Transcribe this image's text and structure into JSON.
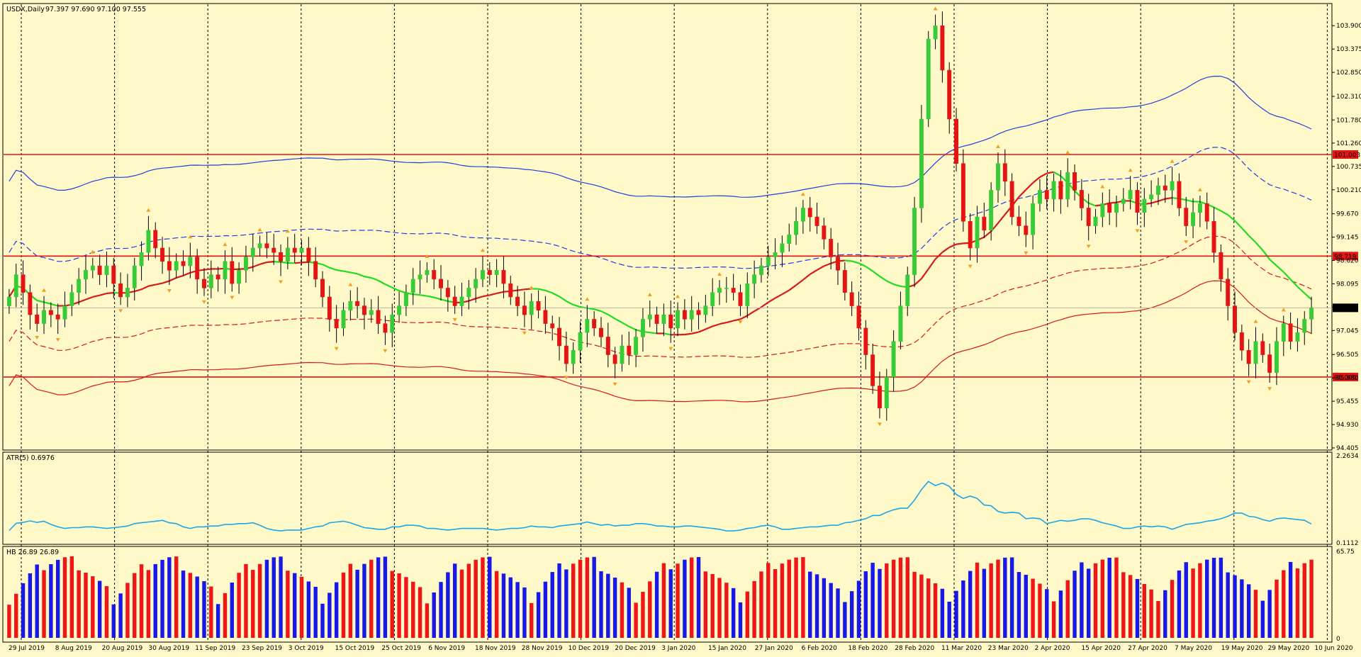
{
  "chart_data": {
    "type": "candlestick",
    "symbol_label": "USDX,Daily",
    "ohlc_header": "97.397 97.690 97.100 97.555",
    "price_ticks": [
      "103.900",
      "103.375",
      "102.850",
      "102.310",
      "101.780",
      "101.260",
      "100.735",
      "100.210",
      "99.670",
      "99.145",
      "98.620",
      "98.095",
      "97.570",
      "97.045",
      "96.505",
      "95.980",
      "95.455",
      "94.930",
      "94.405"
    ],
    "ylim": [
      94.405,
      104.35
    ],
    "horizontal_levels": [
      {
        "value": 101.003,
        "label": "101.003"
      },
      {
        "value": 98.719,
        "label": "98.719"
      },
      {
        "value": 96.0,
        "label": "96.000"
      }
    ],
    "last_price": {
      "value": 97.555,
      "label": "97.555"
    },
    "date_labels": [
      "29 Jul 2019",
      "8 Aug 2019",
      "20 Aug 2019",
      "30 Aug 2019",
      "11 Sep 2019",
      "23 Sep 2019",
      "3 Oct 2019",
      "15 Oct 2019",
      "25 Oct 2019",
      "6 Nov 2019",
      "18 Nov 2019",
      "28 Nov 2019",
      "10 Dec 2019",
      "20 Dec 2019",
      "3 Jan 2020",
      "15 Jan 2020",
      "27 Jan 2020",
      "6 Feb 2020",
      "18 Feb 2020",
      "28 Feb 2020",
      "11 Mar 2020",
      "23 Mar 2020",
      "2 Apr 2020",
      "15 Apr 2020",
      "27 Apr 2020",
      "7 May 2020",
      "19 May 2020",
      "29 May 2020",
      "10 Jun 2020"
    ],
    "closes": [
      97.8,
      98.3,
      97.9,
      97.4,
      97.2,
      97.5,
      97.4,
      97.3,
      97.6,
      97.9,
      98.2,
      98.4,
      98.5,
      98.3,
      98.5,
      98.1,
      97.8,
      98.0,
      98.5,
      98.8,
      99.3,
      98.9,
      98.6,
      98.4,
      98.6,
      98.5,
      98.7,
      98.2,
      98.0,
      98.3,
      98.2,
      98.6,
      98.1,
      98.4,
      98.7,
      98.9,
      99.0,
      98.9,
      98.8,
      98.6,
      98.9,
      98.8,
      98.9,
      98.6,
      98.2,
      97.8,
      97.3,
      97.1,
      97.5,
      97.7,
      97.6,
      97.4,
      97.5,
      97.2,
      97.0,
      97.4,
      97.6,
      97.9,
      98.2,
      98.3,
      98.4,
      98.2,
      98.0,
      97.8,
      97.6,
      97.8,
      98.0,
      98.2,
      98.4,
      98.3,
      98.4,
      98.1,
      97.8,
      97.6,
      97.4,
      97.7,
      97.5,
      97.2,
      97.1,
      96.7,
      96.3,
      96.6,
      97.0,
      97.3,
      97.1,
      96.9,
      96.5,
      96.3,
      96.7,
      96.5,
      96.9,
      97.3,
      97.4,
      97.2,
      97.4,
      97.1,
      97.5,
      97.3,
      97.5,
      97.4,
      97.6,
      97.9,
      98.0,
      98.0,
      97.9,
      97.6,
      98.1,
      98.3,
      98.5,
      98.7,
      98.8,
      99.0,
      99.2,
      99.5,
      99.8,
      99.6,
      99.4,
      99.1,
      98.7,
      98.4,
      97.9,
      97.6,
      97.1,
      96.5,
      95.8,
      95.3,
      96.0,
      96.8,
      97.6,
      98.3,
      99.8,
      101.8,
      103.6,
      103.9,
      102.9,
      101.8,
      100.8,
      99.5,
      98.9,
      99.6,
      99.3,
      100.2,
      100.8,
      100.4,
      99.6,
      99.4,
      99.2,
      99.9,
      100.2,
      100.0,
      100.4,
      100.0,
      100.6,
      100.2,
      99.8,
      99.4,
      99.6,
      99.9,
      99.7,
      99.9,
      100.0,
      100.2,
      99.7,
      100.0,
      100.1,
      100.3,
      100.2,
      100.4,
      99.8,
      99.4,
      99.7,
      99.9,
      99.5,
      98.8,
      98.2,
      97.6,
      97.0,
      96.6,
      96.3,
      96.8,
      96.5,
      96.1,
      96.8,
      97.2,
      96.8,
      97.0,
      97.3,
      97.555
    ]
  },
  "atr": {
    "label": "ATR(5) 0.6976",
    "ticks": [
      "2.2634",
      "0.1112"
    ],
    "ylim": [
      0.1112,
      2.2634
    ]
  },
  "hb": {
    "label": "HB 26.89 26.89",
    "ticks": [
      "65.75",
      "0"
    ],
    "ylim": [
      0,
      65.75
    ]
  },
  "colors": {
    "background": "#fff8c8",
    "bull": "#37cc37",
    "bear": "#e51414",
    "level_line": "#e51414",
    "band_outer_top": "#1f3fe0",
    "band_outer_bottom": "#d41a1a",
    "ma_green": "#1edc1e",
    "ma_red": "#d41a1a",
    "atr_line": "#1aa6e8",
    "hb_red": "#ee1616",
    "hb_blue": "#1818e8",
    "fractal": "#f0a020"
  }
}
